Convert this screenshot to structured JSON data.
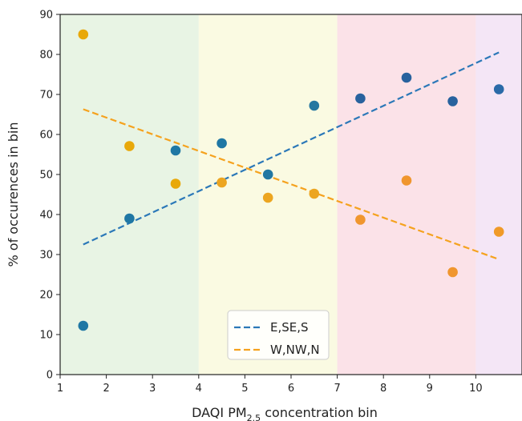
{
  "chart_data": {
    "type": "scatter",
    "xlabel_main": "DAQI PM",
    "xlabel_sub": "2.5",
    "xlabel_tail": " concentration bin",
    "ylabel": "% of occurences in bin",
    "xlim": [
      1,
      11
    ],
    "ylim": [
      0,
      90
    ],
    "xticks": [
      "1",
      "2",
      "3",
      "4",
      "5",
      "6",
      "7",
      "8",
      "9",
      "10"
    ],
    "yticks": [
      "0",
      "10",
      "20",
      "30",
      "40",
      "50",
      "60",
      "70",
      "80",
      "90"
    ],
    "grid": false,
    "legend_position": "bottom-center",
    "bands": [
      {
        "from": 1,
        "to": 4,
        "color": "#e8f4e4"
      },
      {
        "from": 4,
        "to": 7,
        "color": "#fafae2"
      },
      {
        "from": 7,
        "to": 10,
        "color": "#fbe2e8"
      },
      {
        "from": 10,
        "to": 11,
        "color": "#f4e6f6"
      }
    ],
    "series": [
      {
        "name": "E,SE,S",
        "points": [
          {
            "x": 1.5,
            "y": 12.2,
            "color": "#1f77a4"
          },
          {
            "x": 2.5,
            "y": 39.0,
            "color": "#1f77a4"
          },
          {
            "x": 3.5,
            "y": 56.0,
            "color": "#1f77a4"
          },
          {
            "x": 4.5,
            "y": 57.8,
            "color": "#1f77a4"
          },
          {
            "x": 5.5,
            "y": 50.0,
            "color": "#2277a2"
          },
          {
            "x": 6.5,
            "y": 67.2,
            "color": "#2577a0"
          },
          {
            "x": 7.5,
            "y": 69.0,
            "color": "#28629e"
          },
          {
            "x": 8.5,
            "y": 74.2,
            "color": "#28629e"
          },
          {
            "x": 9.5,
            "y": 68.3,
            "color": "#28629e"
          },
          {
            "x": 10.5,
            "y": 71.3,
            "color": "#2a6aa8"
          }
        ],
        "trend": {
          "x": [
            1.5,
            10.5
          ],
          "y": [
            32.5,
            80.5
          ],
          "color": "#2b78b8"
        }
      },
      {
        "name": "W,NW,N",
        "points": [
          {
            "x": 1.5,
            "y": 85.0,
            "color": "#e8a80a"
          },
          {
            "x": 2.5,
            "y": 57.1,
            "color": "#e8a80a"
          },
          {
            "x": 3.5,
            "y": 47.7,
            "color": "#e8a80a"
          },
          {
            "x": 4.5,
            "y": 48.0,
            "color": "#eca520"
          },
          {
            "x": 5.5,
            "y": 44.2,
            "color": "#eca520"
          },
          {
            "x": 6.5,
            "y": 45.2,
            "color": "#eca520"
          },
          {
            "x": 7.5,
            "y": 38.7,
            "color": "#f0962e"
          },
          {
            "x": 8.5,
            "y": 48.5,
            "color": "#f0962e"
          },
          {
            "x": 9.5,
            "y": 25.6,
            "color": "#f0962e"
          },
          {
            "x": 10.5,
            "y": 35.7,
            "color": "#f09a28"
          }
        ],
        "trend": {
          "x": [
            1.5,
            10.5
          ],
          "y": [
            66.3,
            28.8
          ],
          "color": "#f5a21e"
        }
      }
    ]
  }
}
